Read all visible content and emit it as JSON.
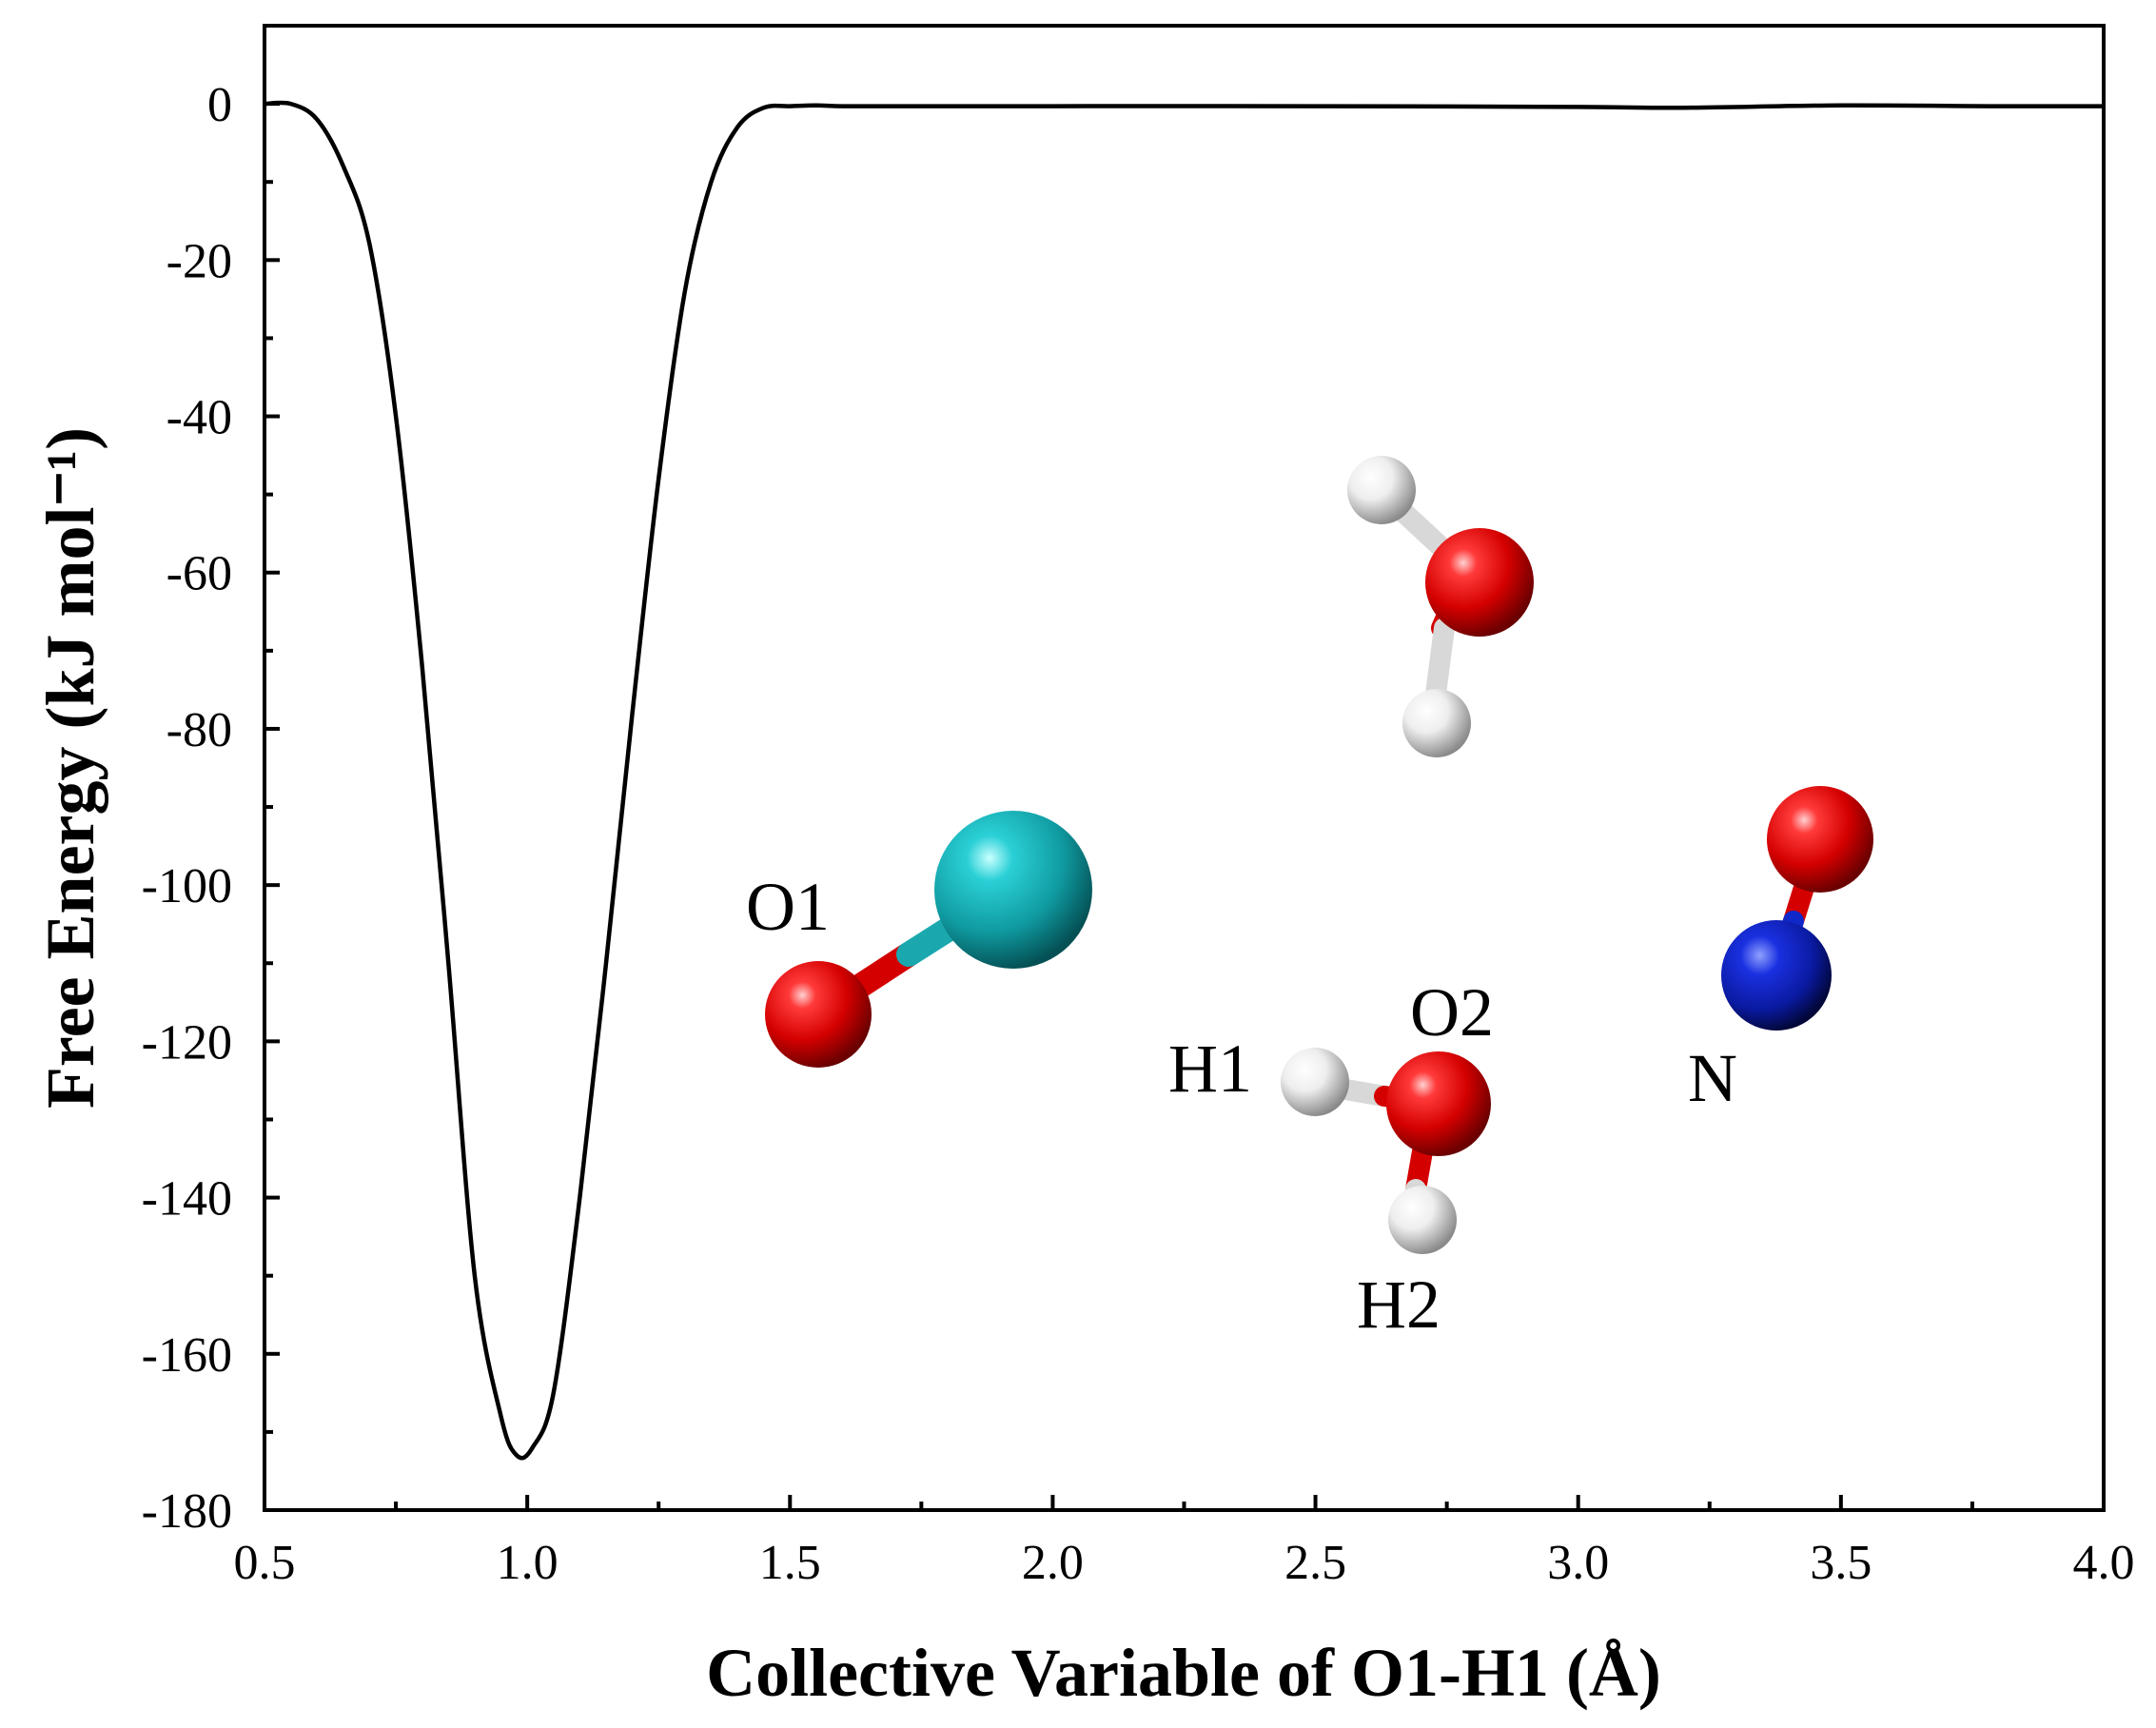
{
  "chart_data": {
    "type": "line",
    "xlabel": "Collective Variable of O1-H1 (Å)",
    "ylabel": "Free Energy (kJ mol⁻¹)",
    "xlim": [
      0.5,
      4.0
    ],
    "ylim": [
      -180,
      10
    ],
    "xticks": [
      0.5,
      1.0,
      1.5,
      2.0,
      2.5,
      3.0,
      3.5,
      4.0
    ],
    "xtick_labels": [
      "0.5",
      "1.0",
      "1.5",
      "2.0",
      "2.5",
      "3.0",
      "3.5",
      "4.0"
    ],
    "yticks": [
      0,
      -20,
      -40,
      -60,
      -80,
      -100,
      -120,
      -140,
      -160,
      -180
    ],
    "ytick_labels": [
      "0",
      "-20",
      "-40",
      "-60",
      "-80",
      "-100",
      "-120",
      "-140",
      "-160",
      "-180"
    ],
    "grid": false,
    "series": [
      {
        "color": "#000000",
        "x": [
          0.5,
          0.55,
          0.6,
          0.65,
          0.7,
          0.75,
          0.8,
          0.85,
          0.9,
          0.95,
          0.98,
          1.01,
          1.05,
          1.1,
          1.15,
          1.2,
          1.25,
          1.3,
          1.35,
          1.4,
          1.45,
          1.5,
          1.55,
          1.6,
          1.7,
          1.8,
          2.0,
          2.5,
          3.0,
          3.2,
          3.5,
          3.8,
          4.0
        ],
        "y": [
          0,
          0,
          -2,
          -8,
          -18,
          -40,
          -72,
          -110,
          -150,
          -168,
          -173,
          -172,
          -165,
          -140,
          -110,
          -78,
          -48,
          -24,
          -10,
          -3,
          -0.5,
          -0.3,
          -0.2,
          -0.3,
          -0.3,
          -0.3,
          -0.3,
          -0.3,
          -0.4,
          -0.5,
          -0.2,
          -0.3,
          -0.3
        ]
      }
    ],
    "annotations": [
      "O1",
      "O2",
      "H1",
      "H2",
      "N"
    ]
  },
  "colors": {
    "oxygen": "#e31a1c",
    "hydrogen": "#ffffff",
    "nitrogen": "#1028c8",
    "metal": "#19a3a8"
  }
}
